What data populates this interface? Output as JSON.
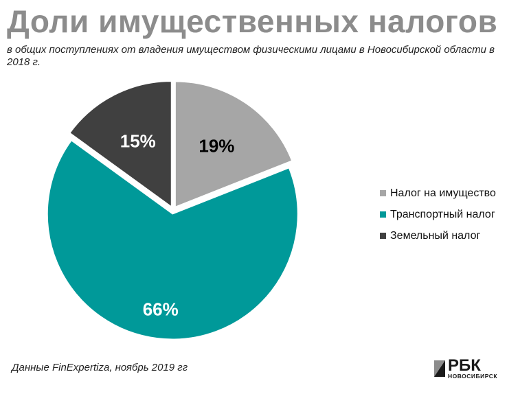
{
  "title": "Доли имущественных налогов",
  "subtitle": "в общих поступлениях от владения имуществом физическими лицами в Новосибирской области в 2018 г.",
  "source": "Данные FinExpertiza, ноябрь 2019 гг",
  "logo": {
    "name": "РБК",
    "city": "НОВОСИБИРСК"
  },
  "chart_data": {
    "type": "pie",
    "labels": [
      "Налог на имущество",
      "Транспортный налог",
      "Земельный налог"
    ],
    "values": [
      19,
      66,
      15
    ],
    "value_labels": [
      "19%",
      "66%",
      "15%"
    ],
    "colors": [
      "#a6a6a6",
      "#009999",
      "#404040"
    ],
    "label_colors": [
      "#000000",
      "#ffffff",
      "#ffffff"
    ],
    "start_angle_deg": 0,
    "direction": "clockwise",
    "legend_position": "right"
  }
}
